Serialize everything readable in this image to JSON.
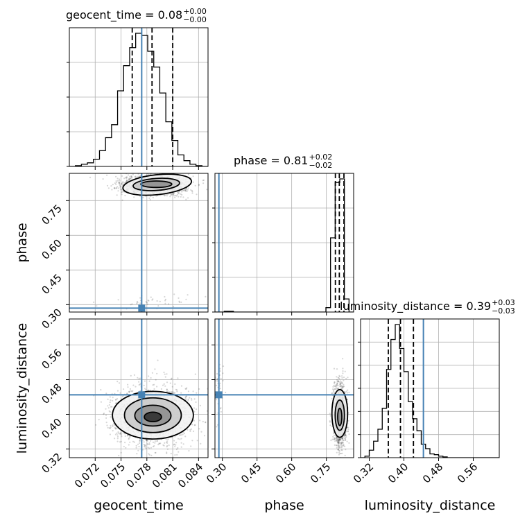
{
  "chart_data": {
    "type": "corner",
    "parameters": [
      "geocent_time",
      "phase",
      "luminosity_distance"
    ],
    "truth_values": {
      "geocent_time": 0.0774,
      "phase": 0.285,
      "luminosity_distance": 0.445
    },
    "truth_color": "#4682b4",
    "marginals": [
      {
        "parameter": "geocent_time",
        "title": {
          "main": "geocent_time = 0.08",
          "sup": "+0.00",
          "sub": "−0.00"
        },
        "quantiles": [
          0.0763,
          0.0786,
          0.081
        ],
        "bin_edges": [
          0.069,
          0.0697,
          0.0704,
          0.0711,
          0.0718,
          0.0725,
          0.0732,
          0.0739,
          0.0746,
          0.0753,
          0.076,
          0.0767,
          0.0774,
          0.0781,
          0.0788,
          0.0795,
          0.0802,
          0.0809,
          0.0816,
          0.0823,
          0.083,
          0.0837,
          0.0844,
          0.0851
        ],
        "counts": [
          0,
          1,
          3,
          5,
          10,
          22,
          40,
          58,
          105,
          140,
          165,
          185,
          182,
          160,
          138,
          102,
          62,
          36,
          16,
          8,
          3,
          1,
          0
        ]
      },
      {
        "parameter": "phase",
        "title": {
          "main": "phase = 0.81",
          "sup": "+0.02",
          "sub": "−0.02"
        },
        "quantiles": [
          0.789,
          0.806,
          0.826
        ],
        "bin_edges": [
          0.268,
          0.288,
          0.308,
          0.328,
          0.348,
          0.368,
          0.388,
          0.408,
          0.428,
          0.448,
          0.468,
          0.488,
          0.508,
          0.528,
          0.548,
          0.568,
          0.588,
          0.608,
          0.628,
          0.648,
          0.668,
          0.688,
          0.708,
          0.728,
          0.748,
          0.768,
          0.788,
          0.808,
          0.828,
          0.848,
          0.868
        ],
        "counts": [
          0,
          0,
          1,
          1,
          0,
          0,
          0,
          0,
          0,
          0,
          0,
          0,
          0,
          0,
          0,
          0,
          0,
          0,
          0,
          0,
          0,
          0,
          0,
          0,
          6,
          102,
          178,
          183,
          18,
          0
        ]
      },
      {
        "parameter": "luminosity_distance",
        "title": {
          "main": "luminosity_distance = 0.39",
          "sup": "+0.03",
          "sub": "−0.03"
        },
        "quantiles": [
          0.364,
          0.392,
          0.422
        ],
        "bin_edges": [
          0.3,
          0.31,
          0.32,
          0.33,
          0.34,
          0.35,
          0.36,
          0.37,
          0.38,
          0.39,
          0.4,
          0.41,
          0.42,
          0.43,
          0.44,
          0.45,
          0.46,
          0.47,
          0.48,
          0.49,
          0.5,
          0.51,
          0.52,
          0.53,
          0.54,
          0.55,
          0.56,
          0.57,
          0.58,
          0.59,
          0.6,
          0.61,
          0.62
        ],
        "counts": [
          0,
          2,
          10,
          22,
          38,
          66,
          118,
          158,
          178,
          146,
          115,
          75,
          52,
          36,
          18,
          12,
          5,
          4,
          2,
          1,
          0,
          0,
          0,
          0,
          0,
          0,
          0,
          0,
          0,
          0,
          0,
          0
        ]
      }
    ],
    "joint_panels": [
      {
        "x": "geocent_time",
        "y": "phase",
        "main_mode": {
          "center": [
            0.0788,
            0.818
          ],
          "sigma": [
            0.00185,
            0.022
          ],
          "points": 1500
        },
        "minor_mode": {
          "center": [
            0.0786,
            0.315
          ],
          "sigma": [
            0.0022,
            0.018
          ],
          "points": 40
        },
        "contours": [
          {
            "center": [
              0.0792,
              0.819
            ],
            "radii": [
              0.004,
              0.043
            ],
            "rotate": -6
          },
          {
            "center": [
              0.0791,
              0.82
            ],
            "radii": [
              0.0027,
              0.026
            ],
            "rotate": -4
          },
          {
            "center": [
              0.0791,
              0.821
            ],
            "radii": [
              0.0018,
              0.014
            ],
            "rotate": 0
          }
        ]
      },
      {
        "x": "geocent_time",
        "y": "luminosity_distance",
        "main_mode": {
          "center": [
            0.0786,
            0.396
          ],
          "sigma": [
            0.0022,
            0.034
          ],
          "points": 1700
        },
        "contours": [
          {
            "center": [
              0.0787,
              0.398
            ],
            "radii": [
              0.0047,
              0.055
            ],
            "rotate": 0
          },
          {
            "center": [
              0.0787,
              0.398
            ],
            "radii": [
              0.0033,
              0.04
            ],
            "rotate": 0
          },
          {
            "center": [
              0.0787,
              0.397
            ],
            "radii": [
              0.0021,
              0.024
            ],
            "rotate": 0
          },
          {
            "center": [
              0.0787,
              0.394
            ],
            "radii": [
              0.001,
              0.011
            ],
            "rotate": 0
          }
        ]
      },
      {
        "x": "phase",
        "y": "luminosity_distance",
        "main_mode": {
          "center": [
            0.809,
            0.398
          ],
          "sigma": [
            0.014,
            0.036
          ],
          "points": 1400
        },
        "minor_mode": {
          "center": [
            0.283,
            0.462
          ],
          "sigma": [
            0.01,
            0.03
          ],
          "points": 45
        },
        "contours": [
          {
            "center": [
              0.808,
              0.402
            ],
            "radii": [
              0.034,
              0.055
            ],
            "rotate": 0
          },
          {
            "center": [
              0.808,
              0.398
            ],
            "radii": [
              0.02,
              0.035
            ],
            "rotate": 0
          },
          {
            "center": [
              0.808,
              0.394
            ],
            "radii": [
              0.009,
              0.02
            ],
            "rotate": 0
          }
        ]
      }
    ],
    "axes": {
      "geocent_time": {
        "range": [
          0.069,
          0.0851
        ],
        "ticks": [
          0.072,
          0.075,
          0.078,
          0.081,
          0.084
        ],
        "tick_labels": [
          "0.072",
          "0.075",
          "0.078",
          "0.081",
          "0.084"
        ],
        "label": "geocent_time"
      },
      "phase": {
        "range": [
          0.268,
          0.868
        ],
        "ticks": [
          0.3,
          0.45,
          0.6,
          0.75
        ],
        "tick_labels": [
          "0.30",
          "0.45",
          "0.60",
          "0.75"
        ],
        "label": "phase"
      },
      "luminosity_distance": {
        "range": [
          0.3,
          0.62
        ],
        "ticks": [
          0.32,
          0.4,
          0.48,
          0.56
        ],
        "tick_labels": [
          "0.32",
          "0.40",
          "0.48",
          "0.56"
        ],
        "label": "luminosity_distance"
      }
    },
    "grid": true
  }
}
